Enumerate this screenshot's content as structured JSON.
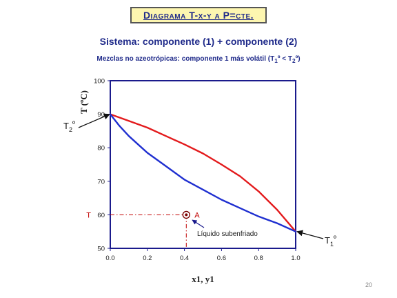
{
  "header": {
    "title": "Diagrama T-x-y a P=cte.",
    "system": "Sistema: componente (1) + componente (2)",
    "subtitle_main": "Mezclas no azeotrópicas: componente 1 más volátil (T",
    "subtitle_sub1": "1",
    "subtitle_mid": "º < T",
    "subtitle_sub2": "2",
    "subtitle_end": "º)"
  },
  "page_number": "20",
  "chart_data": {
    "type": "line",
    "xlabel": "x1, y1",
    "ylabel": "T (ºC)",
    "xlim": [
      0.0,
      1.0
    ],
    "ylim": [
      50,
      100
    ],
    "x_ticks": [
      "0.0",
      "0.2",
      "0.4",
      "0.6",
      "0.8",
      "1.0"
    ],
    "y_ticks": [
      "50",
      "60",
      "70",
      "80",
      "90",
      "100"
    ],
    "series": [
      {
        "color": "#e31a1c",
        "x": [
          0.0,
          0.1,
          0.2,
          0.3,
          0.4,
          0.5,
          0.6,
          0.7,
          0.8,
          0.9,
          1.0
        ],
        "y": [
          90.0,
          88.0,
          86.0,
          83.5,
          81.0,
          78.3,
          75.0,
          71.5,
          67.0,
          61.5,
          55.0
        ]
      },
      {
        "color": "#1f2fd0",
        "x": [
          0.0,
          0.05,
          0.1,
          0.15,
          0.2,
          0.3,
          0.4,
          0.5,
          0.6,
          0.7,
          0.8,
          0.9,
          1.0
        ],
        "y": [
          90.0,
          86.5,
          83.5,
          81.0,
          78.5,
          74.5,
          70.5,
          67.5,
          64.5,
          62.0,
          59.5,
          57.5,
          55.0
        ]
      }
    ],
    "point": {
      "x": 0.41,
      "y": 60,
      "label": "A",
      "color": "#c00000"
    },
    "guide_color": "#c00000",
    "annotations": {
      "t_marker": "T",
      "point_note": "Líquido subenfriado",
      "t2_label": "T",
      "t2_sub": "2",
      "t2_sup": "º",
      "t1_label": "T",
      "t1_sub": "1",
      "t1_sup": "º"
    },
    "colors": {
      "axis": "#1a1a8c",
      "text": "#1a1a1a",
      "title": "#1f2a8a"
    }
  }
}
